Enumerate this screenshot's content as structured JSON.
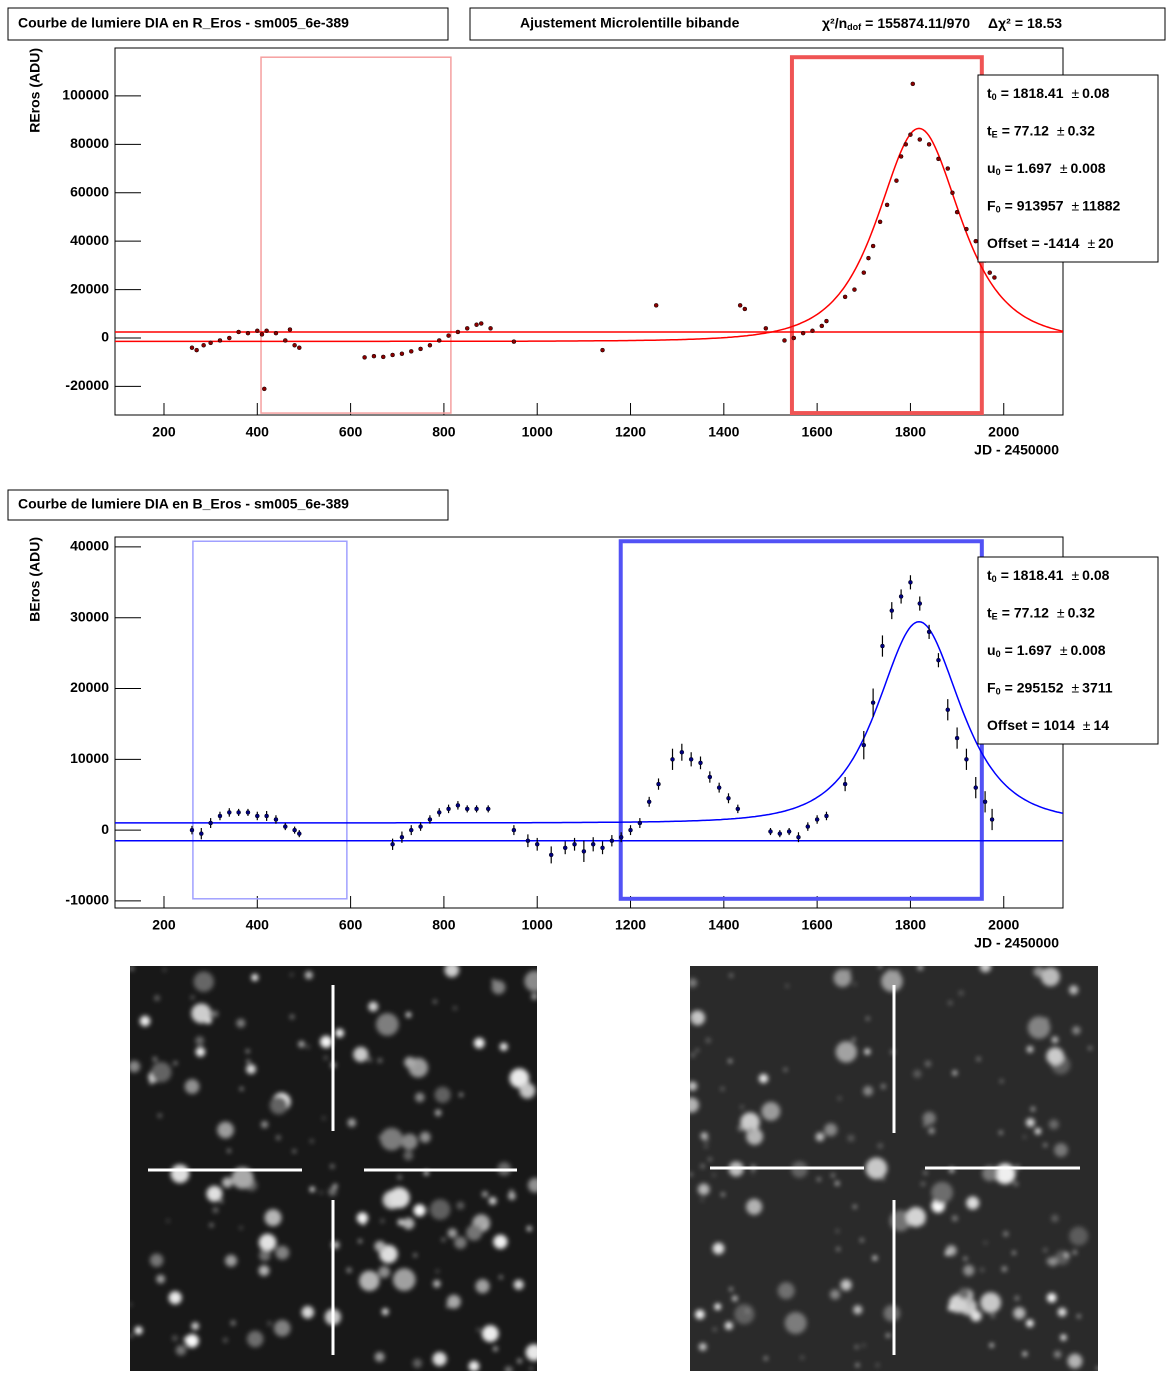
{
  "fit_header": {
    "title": "Ajustement Microlentille bibande",
    "chi2_label": "χ²/n",
    "chi2_sub": "dof",
    "eq": "=",
    "chi2": 155874.11,
    "slash": "/",
    "ndof": 970,
    "delta_label": "Δχ²",
    "delta_chi2": 18.53
  },
  "chart_data": [
    {
      "type": "scatter",
      "title": "Courbe de lumiere DIA en R_Eros - sm005_6e-389",
      "ylabel": "REros (ADU)",
      "xlabel": "JD - 2450000",
      "xlim": [
        95,
        2127
      ],
      "ylim": [
        -31800,
        119800
      ],
      "xticks": [
        200,
        400,
        600,
        800,
        1000,
        1200,
        1400,
        1600,
        1800,
        2000
      ],
      "yticks": [
        -20000,
        0,
        20000,
        40000,
        60000,
        80000,
        100000
      ],
      "point_color": "#8b0000",
      "fit_color": "#ff0000",
      "x": [
        260,
        270,
        285,
        300,
        320,
        340,
        360,
        380,
        400,
        410,
        420,
        440,
        460,
        470,
        480,
        490,
        415,
        630,
        650,
        670,
        690,
        710,
        730,
        750,
        770,
        790,
        810,
        830,
        850,
        870,
        880,
        900,
        950,
        1140,
        1255,
        1435,
        1445,
        1490,
        1530,
        1550,
        1570,
        1590,
        1610,
        1620,
        1660,
        1680,
        1700,
        1710,
        1720,
        1735,
        1750,
        1770,
        1780,
        1790,
        1800,
        1805,
        1820,
        1840,
        1860,
        1880,
        1890,
        1900,
        1920,
        1940,
        1950,
        1960,
        1970,
        1980
      ],
      "values": [
        -4000,
        -5000,
        -3000,
        -2000,
        -1000,
        0,
        2500,
        2000,
        3000,
        1500,
        3000,
        2000,
        -1000,
        3500,
        -3000,
        -4000,
        -21000,
        -8000,
        -7500,
        -7800,
        -7000,
        -6500,
        -5500,
        -4500,
        -3000,
        -1000,
        1000,
        2500,
        4000,
        5500,
        6000,
        4000,
        -1500,
        -5000,
        13500,
        13500,
        12000,
        4000,
        -1000,
        0,
        2000,
        3000,
        5000,
        7000,
        17000,
        20000,
        27000,
        33000,
        38000,
        48000,
        55000,
        65000,
        75000,
        80000,
        84000,
        105000,
        82000,
        80000,
        74000,
        70000,
        60000,
        52000,
        45000,
        40000,
        36000,
        32000,
        27000,
        25000
      ],
      "hlines": [
        2500
      ],
      "regions": [
        {
          "x": [
            408,
            815
          ],
          "y": [
            -31000,
            116000
          ],
          "color": "#f5a0a0",
          "width": 1.5
        },
        {
          "x": [
            1546,
            1953
          ],
          "y": [
            -31000,
            116000
          ],
          "color": "#ef5454",
          "width": 4
        }
      ],
      "symbols": {
        "eq": "=",
        "pm": "±"
      },
      "params": [
        {
          "name": "t",
          "sub": "0",
          "value": 1818.41,
          "error": 0.08
        },
        {
          "name": "t",
          "sub": "E",
          "value": 77.12,
          "error": 0.32
        },
        {
          "name": "u",
          "sub": "0",
          "value": 1.697,
          "error": 0.008
        },
        {
          "name": "F",
          "sub": "0",
          "value": 913957,
          "error": 11882
        },
        {
          "name": "Offset",
          "sub": "",
          "value": -1414,
          "error": 20
        }
      ]
    },
    {
      "type": "scatter",
      "title": "Courbe de lumiere DIA en B_Eros - sm005_6e-389",
      "ylabel": "BEros (ADU)",
      "xlabel": "JD - 2450000",
      "xlim": [
        95,
        2127
      ],
      "ylim": [
        -11000,
        41400
      ],
      "xticks": [
        200,
        400,
        600,
        800,
        1000,
        1200,
        1400,
        1600,
        1800,
        2000
      ],
      "yticks": [
        -10000,
        0,
        10000,
        20000,
        30000,
        40000
      ],
      "point_color": "#000080",
      "fit_color": "#0000ff",
      "x": [
        260,
        280,
        300,
        320,
        340,
        360,
        380,
        400,
        420,
        440,
        460,
        480,
        490,
        690,
        710,
        730,
        750,
        770,
        790,
        810,
        830,
        850,
        870,
        895,
        950,
        980,
        1000,
        1030,
        1060,
        1080,
        1100,
        1120,
        1140,
        1160,
        1180,
        1200,
        1220,
        1240,
        1260,
        1290,
        1310,
        1330,
        1350,
        1370,
        1390,
        1410,
        1430,
        1500,
        1520,
        1540,
        1560,
        1580,
        1600,
        1620,
        1660,
        1700,
        1720,
        1740,
        1760,
        1780,
        1800,
        1820,
        1840,
        1860,
        1880,
        1900,
        1920,
        1940,
        1960,
        1975
      ],
      "values": [
        0,
        -500,
        1000,
        2000,
        2500,
        2500,
        2500,
        2000,
        2000,
        1500,
        500,
        0,
        -500,
        -2000,
        -1000,
        0,
        500,
        1500,
        2500,
        3000,
        3500,
        3000,
        3000,
        3000,
        0,
        -1500,
        -2000,
        -3500,
        -2500,
        -2000,
        -3000,
        -2000,
        -2500,
        -1500,
        -1000,
        0,
        1000,
        4000,
        6500,
        10000,
        11000,
        10000,
        9500,
        7500,
        6000,
        4500,
        3000,
        -200,
        -500,
        -200,
        -1000,
        500,
        1500,
        2000,
        6500,
        12000,
        18000,
        26000,
        31000,
        33000,
        35000,
        32000,
        28000,
        24000,
        17000,
        13000,
        10000,
        6000,
        4000,
        1500
      ],
      "errors": [
        600,
        800,
        700,
        600,
        600,
        500,
        500,
        600,
        700,
        600,
        500,
        500,
        500,
        800,
        800,
        700,
        600,
        600,
        600,
        600,
        600,
        500,
        500,
        500,
        700,
        900,
        900,
        1200,
        900,
        900,
        1500,
        1000,
        900,
        800,
        700,
        700,
        700,
        700,
        800,
        1500,
        1200,
        1000,
        900,
        800,
        700,
        700,
        600,
        500,
        500,
        500,
        700,
        600,
        600,
        600,
        1000,
        2000,
        2000,
        1500,
        1200,
        1000,
        1000,
        1000,
        1000,
        1000,
        1500,
        1500,
        1500,
        1500,
        1500,
        1500
      ],
      "hlines": [
        -1500
      ],
      "regions": [
        {
          "x": [
            262,
            592
          ],
          "y": [
            -9700,
            40800
          ],
          "color": "#a0a0ff",
          "width": 1.5
        },
        {
          "x": [
            1179,
            1953
          ],
          "y": [
            -9700,
            40800
          ],
          "color": "#5252f5",
          "width": 4
        }
      ],
      "symbols": {
        "eq": "=",
        "pm": "±"
      },
      "params": [
        {
          "name": "t",
          "sub": "0",
          "value": 1818.41,
          "error": 0.08
        },
        {
          "name": "t",
          "sub": "E",
          "value": 77.12,
          "error": 0.32
        },
        {
          "name": "u",
          "sub": "0",
          "value": 1.697,
          "error": 0.008
        },
        {
          "name": "F",
          "sub": "0",
          "value": 295152,
          "error": 3711
        },
        {
          "name": "Offset",
          "sub": "",
          "value": 1014,
          "error": 14
        }
      ]
    }
  ]
}
